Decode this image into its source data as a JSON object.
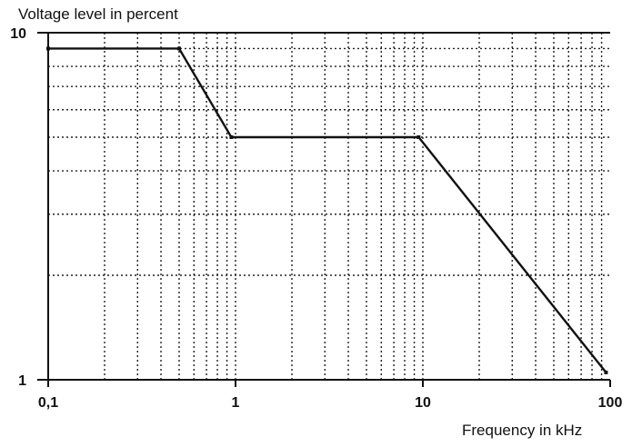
{
  "chart_data": {
    "type": "line",
    "ylabel": "Voltage level in percent",
    "xlabel": "Frequency in kHz",
    "x_scale": "log",
    "y_scale": "log",
    "xlim": [
      0.1,
      100
    ],
    "ylim": [
      1,
      10
    ],
    "x_ticks": [
      "0,1",
      "1",
      "10",
      "100"
    ],
    "y_ticks": [
      "10",
      "1"
    ],
    "grid": true,
    "grid_style": "dotted",
    "series": [
      {
        "x": [
          0.1,
          0.5,
          0.95,
          9.5,
          95
        ],
        "y": [
          9,
          9,
          5,
          5,
          1.05
        ]
      }
    ]
  }
}
